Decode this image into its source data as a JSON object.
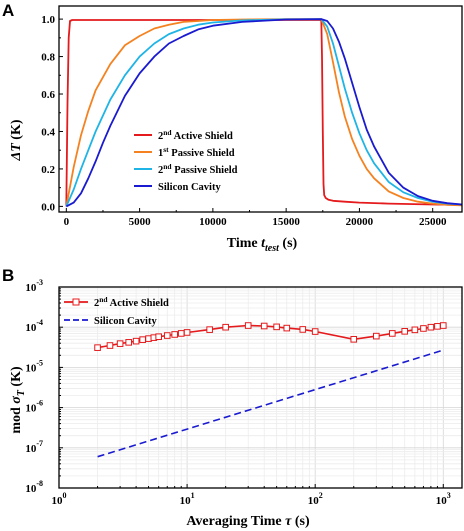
{
  "panels": {
    "a": {
      "letter": "A"
    },
    "b": {
      "letter": "B"
    }
  },
  "chart_data": [
    {
      "type": "line",
      "panel": "A",
      "xlabel": "Time t_test (s)",
      "xlabel_main": "Time ",
      "xlabel_italic": "t",
      "xlabel_sub": "test",
      "xlabel_unit": " (s)",
      "ylabel": "ΔT (K)",
      "ylabel_italic": "ΔT",
      "ylabel_unit": " (K)",
      "xlim": [
        -500,
        27000
      ],
      "ylim": [
        -0.03,
        1.07
      ],
      "xticks": [
        0,
        5000,
        10000,
        15000,
        20000,
        25000
      ],
      "yticks": [
        0.0,
        0.2,
        0.4,
        0.6,
        0.8,
        1.0
      ],
      "ytick_labels": [
        "0.0",
        "0.2",
        "0.4",
        "0.6",
        "0.8",
        "1.0"
      ],
      "grid": false,
      "legend_position": "bottom-center",
      "colors": {
        "active": "#e41a1c",
        "passive1": "#f58220",
        "passive2": "#1fb4e6",
        "cavity": "#1a1ad0"
      },
      "series": [
        {
          "name": "2nd Active Shield",
          "name_main": "2",
          "name_sup": "nd",
          "name_rest": " Active Shield",
          "color": "#e41a1c",
          "x": [
            0,
            80,
            160,
            250,
            400,
            1000,
            5000,
            10000,
            15000,
            17400,
            17450,
            17500,
            17550,
            17600,
            17700,
            17900,
            18200,
            19000,
            20000,
            22000,
            25000,
            27000
          ],
          "y": [
            0.0,
            0.55,
            0.9,
            0.99,
            0.995,
            0.995,
            0.995,
            0.995,
            0.995,
            0.995,
            0.8,
            0.4,
            0.12,
            0.06,
            0.045,
            0.035,
            0.03,
            0.025,
            0.02,
            0.015,
            0.01,
            0.008
          ]
        },
        {
          "name": "1st Passive Shield",
          "name_main": "1",
          "name_sup": "st",
          "name_rest": " Passive Shield",
          "color": "#f58220",
          "x": [
            0,
            500,
            1000,
            1500,
            2000,
            3000,
            4000,
            5000,
            6000,
            7000,
            8000,
            9000,
            10000,
            12000,
            15000,
            17400,
            17800,
            18200,
            18600,
            19000,
            19500,
            20000,
            20500,
            21000,
            22000,
            23000,
            24000,
            25000,
            26000,
            27000
          ],
          "y": [
            0.0,
            0.21,
            0.38,
            0.51,
            0.62,
            0.76,
            0.86,
            0.91,
            0.95,
            0.97,
            0.985,
            0.99,
            0.995,
            0.998,
            1.0,
            1.0,
            0.92,
            0.77,
            0.61,
            0.48,
            0.36,
            0.27,
            0.2,
            0.15,
            0.08,
            0.045,
            0.025,
            0.015,
            0.008,
            0.005
          ]
        },
        {
          "name": "2nd Passive Shield",
          "name_main": "2",
          "name_sup": "nd",
          "name_rest": " Passive Shield",
          "color": "#1fb4e6",
          "x": [
            0,
            500,
            1000,
            1500,
            2000,
            3000,
            4000,
            5000,
            6000,
            7000,
            8000,
            9000,
            10000,
            12000,
            15000,
            17400,
            17800,
            18200,
            18600,
            19000,
            19500,
            20000,
            20500,
            21000,
            22000,
            23000,
            24000,
            25000,
            26000,
            27000
          ],
          "y": [
            0.0,
            0.09,
            0.2,
            0.3,
            0.4,
            0.57,
            0.7,
            0.8,
            0.87,
            0.92,
            0.95,
            0.97,
            0.982,
            0.993,
            0.999,
            1.0,
            0.96,
            0.87,
            0.75,
            0.63,
            0.5,
            0.39,
            0.3,
            0.23,
            0.13,
            0.075,
            0.045,
            0.025,
            0.015,
            0.01
          ]
        },
        {
          "name": "Silicon Cavity",
          "name_main": "Silicon Cavity",
          "name_sup": "",
          "name_rest": "",
          "color": "#1a1ad0",
          "x": [
            0,
            500,
            1000,
            1500,
            2000,
            2500,
            3000,
            4000,
            5000,
            6000,
            7000,
            8000,
            9000,
            10000,
            12000,
            15000,
            17400,
            17800,
            18200,
            18600,
            19000,
            19500,
            20000,
            20500,
            21000,
            22000,
            23000,
            24000,
            25000,
            26000,
            27000
          ],
          "y": [
            0.0,
            0.02,
            0.07,
            0.15,
            0.24,
            0.34,
            0.43,
            0.59,
            0.71,
            0.8,
            0.87,
            0.91,
            0.945,
            0.965,
            0.985,
            0.998,
            1.0,
            0.99,
            0.95,
            0.88,
            0.79,
            0.66,
            0.53,
            0.41,
            0.32,
            0.18,
            0.1,
            0.055,
            0.03,
            0.017,
            0.01
          ]
        }
      ]
    },
    {
      "type": "line",
      "panel": "B",
      "xlabel": "Averaging Time τ (s)",
      "xlabel_main": "Averaging Time ",
      "xlabel_italic": "τ",
      "xlabel_unit": " (s)",
      "ylabel": "mod σ_T (K)",
      "ylabel_main": "mod ",
      "ylabel_italic": "σ",
      "ylabel_sub": "T",
      "ylabel_unit": " (K)",
      "xscale": "log",
      "yscale": "log",
      "xlim": [
        1,
        1400
      ],
      "ylim": [
        1e-08,
        0.001
      ],
      "xticks": [
        1,
        10,
        100,
        1000
      ],
      "xtick_base": [
        "10",
        "10",
        "10",
        "10"
      ],
      "xtick_exp": [
        "0",
        "1",
        "2",
        "3"
      ],
      "yticks": [
        1e-08,
        1e-07,
        1e-06,
        1e-05,
        0.0001,
        0.001
      ],
      "ytick_base": [
        "10",
        "10",
        "10",
        "10",
        "10",
        "10"
      ],
      "ytick_exp": [
        "-8",
        "-7",
        "-6",
        "-5",
        "-4",
        "-3"
      ],
      "grid": true,
      "legend_position": "top-left",
      "series": [
        {
          "name": "2nd Active Shield",
          "name_main": "2",
          "name_sup": "nd",
          "name_rest": " Active Shield",
          "color": "#e41a1c",
          "marker": "open-square",
          "style": "solid",
          "x": [
            2,
            2.5,
            3,
            3.5,
            4,
            4.5,
            5,
            5.5,
            6,
            7,
            8,
            9,
            10,
            15,
            20,
            30,
            40,
            50,
            60,
            80,
            100,
            200,
            300,
            400,
            500,
            600,
            700,
            800,
            900,
            1000
          ],
          "y": [
            3.1e-05,
            3.5e-05,
            3.9e-05,
            4.2e-05,
            4.5e-05,
            4.9e-05,
            5.2e-05,
            5.5e-05,
            5.8e-05,
            6.2e-05,
            6.6e-05,
            7e-05,
            7.4e-05,
            8.7e-05,
            0.0001,
            0.00011,
            0.000107,
            0.000102,
            9.5e-05,
            8.8e-05,
            7.8e-05,
            5e-05,
            6e-05,
            7e-05,
            7.9e-05,
            8.6e-05,
            9.3e-05,
            0.0001,
            0.000105,
            0.00011
          ]
        },
        {
          "name": "Silicon Cavity",
          "name_main": "Silicon Cavity",
          "name_sup": "",
          "name_rest": "",
          "color": "#1a1ad0",
          "marker": "none",
          "style": "dashed",
          "x": [
            2,
            1000
          ],
          "y": [
            6e-08,
            2.7e-05
          ]
        }
      ]
    }
  ]
}
